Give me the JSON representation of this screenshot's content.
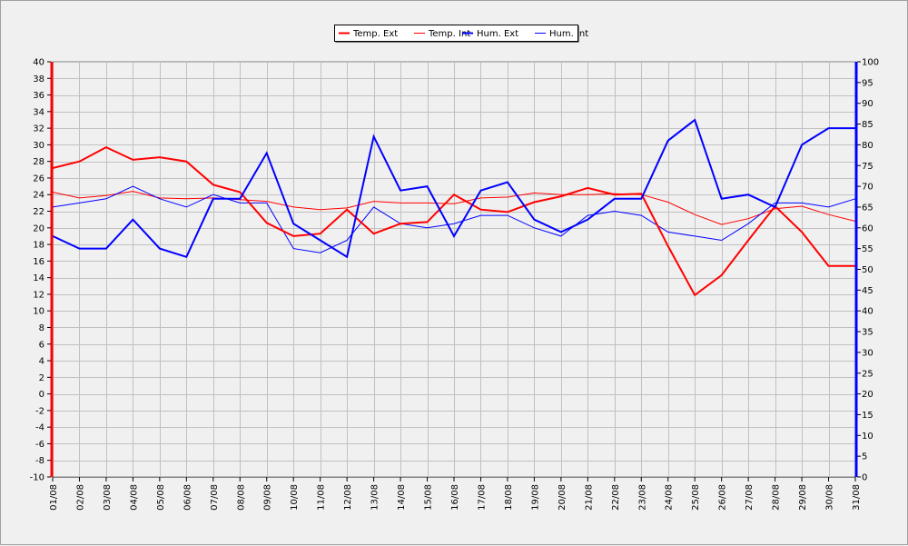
{
  "chart_data": {
    "type": "line",
    "categories": [
      "01/08",
      "02/08",
      "03/08",
      "04/08",
      "05/08",
      "06/08",
      "07/08",
      "08/08",
      "09/08",
      "10/08",
      "11/08",
      "12/08",
      "13/08",
      "14/08",
      "15/08",
      "16/08",
      "17/08",
      "18/08",
      "19/08",
      "20/08",
      "21/08",
      "22/08",
      "23/08",
      "24/08",
      "25/08",
      "26/08",
      "27/08",
      "28/08",
      "29/08",
      "30/08",
      "31/08"
    ],
    "y_left": {
      "min": -10,
      "max": 40,
      "step": 2
    },
    "y_right": {
      "min": 0,
      "max": 100,
      "step": 5
    },
    "grid": true,
    "legend_position": "top-center",
    "series": [
      {
        "name": "Temp. Ext",
        "axis": "left",
        "color": "#ff0000",
        "width": 2,
        "values": [
          27.2,
          28.0,
          29.7,
          28.2,
          28.5,
          28.0,
          25.2,
          24.3,
          20.6,
          19.0,
          19.3,
          22.2,
          19.3,
          20.5,
          20.7,
          24.0,
          22.2,
          21.9,
          23.1,
          23.8,
          24.8,
          24.0,
          24.1,
          17.8,
          11.9,
          14.3,
          18.5,
          22.6,
          19.5,
          15.4,
          15.4
        ]
      },
      {
        "name": "Temp. Int",
        "axis": "left",
        "color": "#ff0000",
        "width": 1,
        "values": [
          24.3,
          23.6,
          23.9,
          24.4,
          23.6,
          23.5,
          23.6,
          23.4,
          23.2,
          22.5,
          22.2,
          22.4,
          23.2,
          23.0,
          23.0,
          22.9,
          23.6,
          23.7,
          24.2,
          24.0,
          24.0,
          24.1,
          24.0,
          23.1,
          21.6,
          20.4,
          21.1,
          22.3,
          22.6,
          21.6,
          20.8
        ]
      },
      {
        "name": "Hum. Ext",
        "axis": "right",
        "color": "#0000ff",
        "width": 2,
        "values": [
          58,
          55,
          55,
          62,
          55,
          53,
          67,
          67,
          78,
          61,
          57,
          53,
          82,
          69,
          70,
          58,
          69,
          71,
          62,
          59,
          62,
          67,
          67,
          81,
          86,
          67,
          68,
          65,
          80,
          84,
          84
        ]
      },
      {
        "name": "Hum. Int",
        "axis": "right",
        "color": "#0000ff",
        "width": 1,
        "values": [
          65,
          66,
          67,
          70,
          67,
          65,
          68,
          66,
          66,
          55,
          54,
          57,
          65,
          61,
          60,
          61,
          63,
          63,
          60,
          58,
          63,
          64,
          63,
          59,
          58,
          57,
          61,
          66,
          66,
          65,
          67
        ]
      }
    ]
  }
}
